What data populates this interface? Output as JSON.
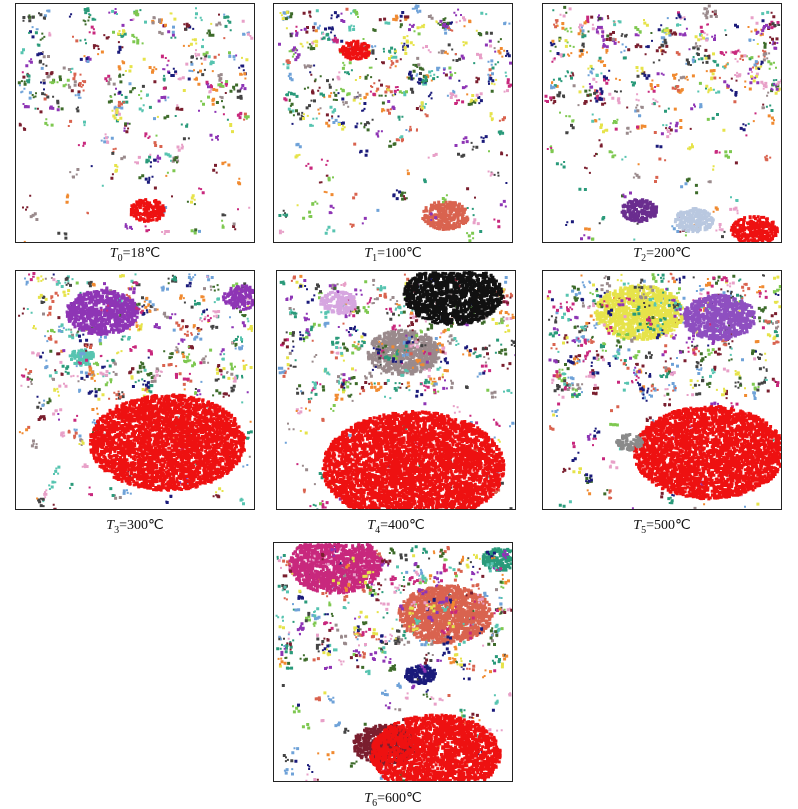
{
  "panels": [
    {
      "symbol": "T",
      "subscript": "0",
      "text": "=18℃"
    },
    {
      "symbol": "T",
      "subscript": "1",
      "text": "=100℃"
    },
    {
      "symbol": "T",
      "subscript": "2",
      "text": "=200℃"
    },
    {
      "symbol": "T",
      "subscript": "3",
      "text": "=300℃"
    },
    {
      "symbol": "T",
      "subscript": "4",
      "text": "=400℃"
    },
    {
      "symbol": "T",
      "subscript": "5",
      "text": "=500℃"
    },
    {
      "symbol": "T",
      "subscript": "6",
      "text": "=600℃"
    }
  ]
}
